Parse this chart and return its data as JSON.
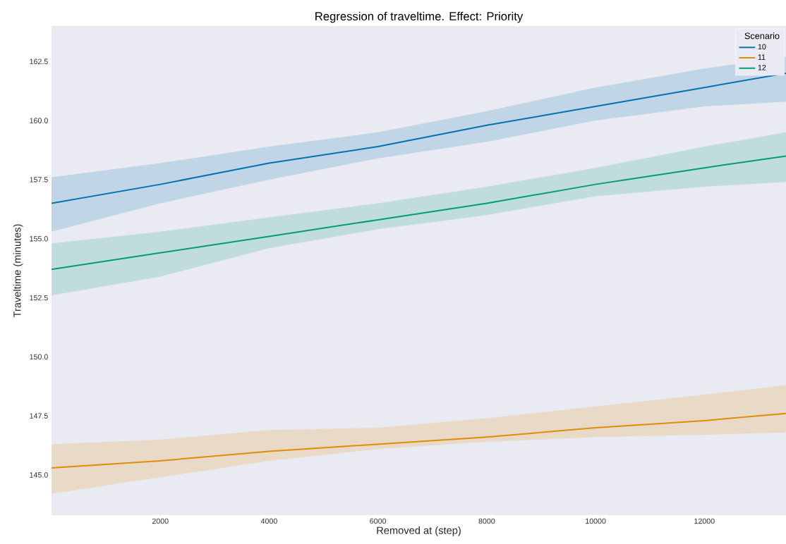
{
  "chart_data": {
    "type": "line",
    "title": "Regression of traveltime. Effect: Priority",
    "xlabel": "Removed at (step)",
    "ylabel": "Traveltime (minutes)",
    "legend_title": "Scenario",
    "legend": "top right",
    "grid": false,
    "x": [
      0,
      2000,
      4000,
      6000,
      8000,
      10000,
      12000,
      13500
    ],
    "xlim": [
      0,
      13500
    ],
    "ylim": [
      143.3,
      164.0
    ],
    "xticks": [
      2000,
      4000,
      6000,
      8000,
      10000,
      12000
    ],
    "yticks": [
      {
        "value": 145,
        "label": "145.0"
      },
      {
        "value": 147.5,
        "label": "147.5"
      },
      {
        "value": 150,
        "label": "150.0"
      },
      {
        "value": 152.5,
        "label": "152.5"
      },
      {
        "value": 155,
        "label": "155.0"
      },
      {
        "value": 157.5,
        "label": "157.5"
      },
      {
        "value": 160,
        "label": "160.0"
      },
      {
        "value": 162.5,
        "label": "162.5"
      }
    ],
    "series": [
      {
        "name": "10",
        "color": "#0173b2",
        "values": [
          156.5,
          157.3,
          158.2,
          158.9,
          159.8,
          160.6,
          161.4,
          162.0
        ],
        "lower": [
          155.3,
          156.5,
          157.5,
          158.4,
          159.1,
          160.0,
          160.6,
          160.8
        ],
        "upper": [
          157.6,
          158.2,
          158.9,
          159.5,
          160.4,
          161.4,
          162.2,
          162.7
        ]
      },
      {
        "name": "11",
        "color": "#de8f05",
        "values": [
          145.3,
          145.6,
          146.0,
          146.3,
          146.6,
          147.0,
          147.3,
          147.6
        ],
        "lower": [
          144.2,
          144.9,
          145.6,
          146.1,
          146.4,
          146.6,
          146.7,
          146.8
        ],
        "upper": [
          146.3,
          146.5,
          146.9,
          147.0,
          147.4,
          147.9,
          148.4,
          148.8
        ]
      },
      {
        "name": "12",
        "color": "#029e73",
        "values": [
          153.7,
          154.4,
          155.1,
          155.8,
          156.5,
          157.3,
          158.0,
          158.5
        ],
        "lower": [
          152.6,
          153.4,
          154.6,
          155.4,
          156.0,
          156.8,
          157.2,
          157.4
        ],
        "upper": [
          154.8,
          155.3,
          155.9,
          156.5,
          157.2,
          158.0,
          158.9,
          159.5
        ]
      }
    ]
  }
}
